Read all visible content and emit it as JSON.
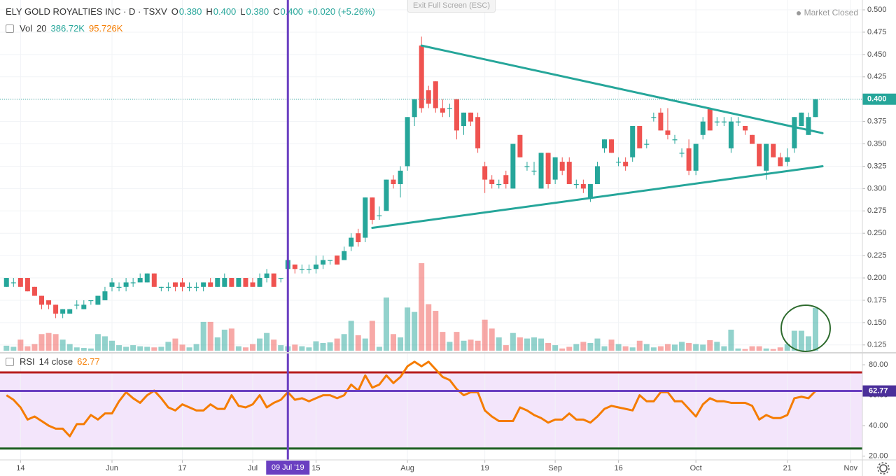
{
  "chart_data": {
    "type": "candlestick",
    "title": "ELY GOLD ROYALTIES INC · D · TSXV",
    "ohlc_names": [
      "O",
      "H",
      "L",
      "C"
    ],
    "ohlc_value_labels": [
      "0.380",
      "0.400",
      "0.380",
      "0.400"
    ],
    "change_label": "+0.020 (+5.26%)",
    "status": "Market Closed",
    "button": "Exit Full Screen (ESC)",
    "up_color": "#26a69a",
    "down_color": "#ef5350",
    "grid": true,
    "x": [
      "2019-05-10",
      "2019-05-13",
      "2019-05-14",
      "2019-05-15",
      "2019-05-16",
      "2019-05-17",
      "2019-05-21",
      "2019-05-22",
      "2019-05-23",
      "2019-05-24",
      "2019-05-27",
      "2019-05-28",
      "2019-05-29",
      "2019-05-30",
      "2019-05-31",
      "2019-06-03",
      "2019-06-04",
      "2019-06-05",
      "2019-06-06",
      "2019-06-07",
      "2019-06-10",
      "2019-06-11",
      "2019-06-12",
      "2019-06-13",
      "2019-06-14",
      "2019-06-17",
      "2019-06-18",
      "2019-06-19",
      "2019-06-20",
      "2019-06-21",
      "2019-06-24",
      "2019-06-25",
      "2019-06-26",
      "2019-06-27",
      "2019-06-28",
      "2019-07-02",
      "2019-07-03",
      "2019-07-04",
      "2019-07-05",
      "2019-07-08",
      "2019-07-09",
      "2019-07-10",
      "2019-07-11",
      "2019-07-12",
      "2019-07-15",
      "2019-07-16",
      "2019-07-17",
      "2019-07-18",
      "2019-07-19",
      "2019-07-22",
      "2019-07-23",
      "2019-07-24",
      "2019-07-25",
      "2019-07-26",
      "2019-07-29",
      "2019-07-30",
      "2019-07-31",
      "2019-08-01",
      "2019-08-02",
      "2019-08-06",
      "2019-08-07",
      "2019-08-08",
      "2019-08-09",
      "2019-08-12",
      "2019-08-13",
      "2019-08-14",
      "2019-08-15",
      "2019-08-16",
      "2019-08-19",
      "2019-08-20",
      "2019-08-21",
      "2019-08-22",
      "2019-08-23",
      "2019-08-26",
      "2019-08-27",
      "2019-08-28",
      "2019-08-29",
      "2019-08-30",
      "2019-09-03",
      "2019-09-04",
      "2019-09-05",
      "2019-09-06",
      "2019-09-09",
      "2019-09-10",
      "2019-09-11",
      "2019-09-12",
      "2019-09-13",
      "2019-09-16",
      "2019-09-17",
      "2019-09-18",
      "2019-09-19",
      "2019-09-20",
      "2019-09-23",
      "2019-09-24",
      "2019-09-25",
      "2019-09-26",
      "2019-09-27",
      "2019-09-30",
      "2019-10-01",
      "2019-10-02",
      "2019-10-03",
      "2019-10-04",
      "2019-10-07",
      "2019-10-08",
      "2019-10-09",
      "2019-10-10",
      "2019-10-11",
      "2019-10-15",
      "2019-10-16",
      "2019-10-17",
      "2019-10-18",
      "2019-10-21",
      "2019-10-22",
      "2019-10-23",
      "2019-10-24",
      "2019-10-25"
    ],
    "ohlc": [
      [
        0.19,
        0.2,
        0.19,
        0.2
      ],
      [
        0.195,
        0.2,
        0.19,
        0.195
      ],
      [
        0.2,
        0.2,
        0.19,
        0.19
      ],
      [
        0.2,
        0.2,
        0.185,
        0.185
      ],
      [
        0.19,
        0.19,
        0.18,
        0.18
      ],
      [
        0.18,
        0.18,
        0.165,
        0.17
      ],
      [
        0.175,
        0.175,
        0.165,
        0.17
      ],
      [
        0.17,
        0.17,
        0.155,
        0.16
      ],
      [
        0.16,
        0.165,
        0.155,
        0.165
      ],
      [
        0.16,
        0.165,
        0.16,
        0.165
      ],
      [
        0.17,
        0.175,
        0.165,
        0.17
      ],
      [
        0.165,
        0.175,
        0.165,
        0.17
      ],
      [
        0.175,
        0.175,
        0.17,
        0.175
      ],
      [
        0.17,
        0.18,
        0.17,
        0.18
      ],
      [
        0.175,
        0.19,
        0.175,
        0.185
      ],
      [
        0.19,
        0.2,
        0.185,
        0.195
      ],
      [
        0.19,
        0.195,
        0.185,
        0.19
      ],
      [
        0.19,
        0.2,
        0.185,
        0.195
      ],
      [
        0.195,
        0.2,
        0.19,
        0.195
      ],
      [
        0.195,
        0.205,
        0.195,
        0.2
      ],
      [
        0.195,
        0.205,
        0.195,
        0.205
      ],
      [
        0.205,
        0.205,
        0.19,
        0.19
      ],
      [
        0.19,
        0.19,
        0.185,
        0.19
      ],
      [
        0.19,
        0.195,
        0.185,
        0.19
      ],
      [
        0.195,
        0.195,
        0.185,
        0.19
      ],
      [
        0.195,
        0.2,
        0.185,
        0.19
      ],
      [
        0.19,
        0.195,
        0.185,
        0.19
      ],
      [
        0.19,
        0.195,
        0.185,
        0.19
      ],
      [
        0.19,
        0.195,
        0.185,
        0.195
      ],
      [
        0.195,
        0.2,
        0.19,
        0.19
      ],
      [
        0.19,
        0.2,
        0.19,
        0.2
      ],
      [
        0.19,
        0.205,
        0.19,
        0.2
      ],
      [
        0.2,
        0.2,
        0.19,
        0.19
      ],
      [
        0.19,
        0.2,
        0.19,
        0.2
      ],
      [
        0.2,
        0.2,
        0.19,
        0.19
      ],
      [
        0.195,
        0.2,
        0.19,
        0.19
      ],
      [
        0.19,
        0.205,
        0.19,
        0.2
      ],
      [
        0.2,
        0.21,
        0.195,
        0.205
      ],
      [
        0.205,
        0.205,
        0.19,
        0.19
      ],
      [
        0.2,
        0.2,
        0.195,
        0.2
      ],
      [
        0.21,
        0.22,
        0.21,
        0.22
      ],
      [
        0.215,
        0.215,
        0.205,
        0.21
      ],
      [
        0.21,
        0.215,
        0.205,
        0.21
      ],
      [
        0.21,
        0.215,
        0.205,
        0.21
      ],
      [
        0.21,
        0.225,
        0.205,
        0.215
      ],
      [
        0.215,
        0.225,
        0.21,
        0.22
      ],
      [
        0.22,
        0.22,
        0.215,
        0.22
      ],
      [
        0.225,
        0.225,
        0.215,
        0.215
      ],
      [
        0.22,
        0.235,
        0.22,
        0.23
      ],
      [
        0.235,
        0.25,
        0.23,
        0.245
      ],
      [
        0.25,
        0.255,
        0.235,
        0.24
      ],
      [
        0.245,
        0.29,
        0.24,
        0.29
      ],
      [
        0.29,
        0.29,
        0.26,
        0.265
      ],
      [
        0.27,
        0.28,
        0.265,
        0.27
      ],
      [
        0.275,
        0.31,
        0.275,
        0.31
      ],
      [
        0.31,
        0.315,
        0.3,
        0.305
      ],
      [
        0.305,
        0.325,
        0.29,
        0.32
      ],
      [
        0.325,
        0.38,
        0.32,
        0.38
      ],
      [
        0.38,
        0.4,
        0.37,
        0.4
      ],
      [
        0.46,
        0.47,
        0.385,
        0.39
      ],
      [
        0.41,
        0.415,
        0.39,
        0.395
      ],
      [
        0.42,
        0.42,
        0.385,
        0.39
      ],
      [
        0.39,
        0.4,
        0.38,
        0.385
      ],
      [
        0.39,
        0.395,
        0.38,
        0.39
      ],
      [
        0.4,
        0.4,
        0.355,
        0.365
      ],
      [
        0.37,
        0.385,
        0.36,
        0.385
      ],
      [
        0.385,
        0.385,
        0.37,
        0.375
      ],
      [
        0.38,
        0.385,
        0.34,
        0.345
      ],
      [
        0.325,
        0.33,
        0.295,
        0.31
      ],
      [
        0.31,
        0.315,
        0.3,
        0.305
      ],
      [
        0.305,
        0.31,
        0.3,
        0.305
      ],
      [
        0.315,
        0.32,
        0.3,
        0.305
      ],
      [
        0.3,
        0.35,
        0.3,
        0.35
      ],
      [
        0.36,
        0.36,
        0.335,
        0.335
      ],
      [
        0.325,
        0.33,
        0.32,
        0.325
      ],
      [
        0.32,
        0.33,
        0.315,
        0.32
      ],
      [
        0.3,
        0.34,
        0.3,
        0.34
      ],
      [
        0.34,
        0.34,
        0.3,
        0.305
      ],
      [
        0.31,
        0.335,
        0.305,
        0.335
      ],
      [
        0.33,
        0.335,
        0.315,
        0.32
      ],
      [
        0.33,
        0.335,
        0.305,
        0.305
      ],
      [
        0.305,
        0.31,
        0.3,
        0.305
      ],
      [
        0.305,
        0.31,
        0.295,
        0.3
      ],
      [
        0.29,
        0.305,
        0.285,
        0.305
      ],
      [
        0.305,
        0.33,
        0.305,
        0.325
      ],
      [
        0.345,
        0.355,
        0.34,
        0.355
      ],
      [
        0.355,
        0.355,
        0.34,
        0.34
      ],
      [
        0.33,
        0.335,
        0.325,
        0.33
      ],
      [
        0.33,
        0.335,
        0.32,
        0.325
      ],
      [
        0.335,
        0.37,
        0.33,
        0.37
      ],
      [
        0.37,
        0.37,
        0.345,
        0.345
      ],
      [
        0.35,
        0.355,
        0.345,
        0.35
      ],
      [
        0.38,
        0.385,
        0.375,
        0.38
      ],
      [
        0.385,
        0.39,
        0.365,
        0.365
      ],
      [
        0.365,
        0.39,
        0.355,
        0.36
      ],
      [
        0.355,
        0.36,
        0.35,
        0.355
      ],
      [
        0.34,
        0.345,
        0.335,
        0.34
      ],
      [
        0.345,
        0.355,
        0.315,
        0.32
      ],
      [
        0.32,
        0.35,
        0.315,
        0.35
      ],
      [
        0.36,
        0.38,
        0.355,
        0.375
      ],
      [
        0.39,
        0.39,
        0.365,
        0.365
      ],
      [
        0.375,
        0.38,
        0.37,
        0.375
      ],
      [
        0.375,
        0.38,
        0.37,
        0.375
      ],
      [
        0.345,
        0.38,
        0.34,
        0.375
      ],
      [
        0.375,
        0.38,
        0.37,
        0.375
      ],
      [
        0.37,
        0.37,
        0.36,
        0.365
      ],
      [
        0.36,
        0.36,
        0.35,
        0.35
      ],
      [
        0.35,
        0.35,
        0.325,
        0.325
      ],
      [
        0.32,
        0.35,
        0.31,
        0.35
      ],
      [
        0.35,
        0.35,
        0.335,
        0.335
      ],
      [
        0.335,
        0.34,
        0.325,
        0.325
      ],
      [
        0.33,
        0.345,
        0.325,
        0.335
      ],
      [
        0.345,
        0.38,
        0.34,
        0.38
      ],
      [
        0.37,
        0.385,
        0.37,
        0.385
      ],
      [
        0.36,
        0.385,
        0.36,
        0.38
      ],
      [
        0.38,
        0.4,
        0.38,
        0.4
      ]
    ],
    "ylim": [
      0.117,
      0.511
    ],
    "yticks": [
      {
        "value": 0.125,
        "label": "0.125"
      },
      {
        "value": 0.15,
        "label": "0.150"
      },
      {
        "value": 0.175,
        "label": "0.175"
      },
      {
        "value": 0.2,
        "label": "0.200"
      },
      {
        "value": 0.225,
        "label": "0.225"
      },
      {
        "value": 0.25,
        "label": "0.250"
      },
      {
        "value": 0.275,
        "label": "0.275"
      },
      {
        "value": 0.3,
        "label": "0.300"
      },
      {
        "value": 0.325,
        "label": "0.325"
      },
      {
        "value": 0.35,
        "label": "0.350"
      },
      {
        "value": 0.375,
        "label": "0.375"
      },
      {
        "value": 0.4,
        "label": "0.400"
      },
      {
        "value": 0.425,
        "label": "0.425"
      },
      {
        "value": 0.45,
        "label": "0.450"
      },
      {
        "value": 0.475,
        "label": "0.475"
      },
      {
        "value": 0.5,
        "label": "0.500"
      }
    ],
    "xticks": [
      {
        "value": "2019-05-14",
        "label": "14"
      },
      {
        "value": "2019-06-03",
        "label": "Jun"
      },
      {
        "value": "2019-06-17",
        "label": "17"
      },
      {
        "value": "2019-07-02",
        "label": "Jul"
      },
      {
        "value": "2019-07-15",
        "label": "15"
      },
      {
        "value": "2019-08-01",
        "label": "Aug"
      },
      {
        "value": "2019-08-19",
        "label": "19"
      },
      {
        "value": "2019-09-03",
        "label": "Sep"
      },
      {
        "value": "2019-09-16",
        "label": "16"
      },
      {
        "value": "2019-10-01",
        "label": "Oct"
      },
      {
        "value": "2019-10-21",
        "label": "21"
      },
      {
        "value": "2019-11-01",
        "label": "Nov"
      }
    ],
    "volume": {
      "name": "Vol",
      "length": 20,
      "value_label": "386.72K",
      "ma_label": "95.726K",
      "values": [
        45,
        35,
        100,
        40,
        60,
        150,
        160,
        150,
        100,
        60,
        30,
        25,
        20,
        150,
        130,
        90,
        50,
        35,
        50,
        40,
        35,
        30,
        35,
        80,
        110,
        55,
        30,
        60,
        260,
        260,
        120,
        190,
        200,
        40,
        30,
        60,
        110,
        160,
        100,
        50,
        40,
        55,
        40,
        30,
        85,
        70,
        75,
        110,
        150,
        270,
        140,
        110,
        270,
        35,
        480,
        150,
        120,
        390,
        350,
        790,
        420,
        360,
        170,
        80,
        170,
        90,
        100,
        90,
        280,
        200,
        120,
        50,
        160,
        120,
        110,
        120,
        110,
        70,
        50,
        20,
        35,
        60,
        80,
        70,
        110,
        40,
        100,
        60,
        40,
        30,
        90,
        60,
        30,
        40,
        60,
        55,
        80,
        70,
        60,
        55,
        95,
        80,
        40,
        190,
        20,
        15,
        40,
        40,
        20,
        15,
        30,
        60,
        180,
        180,
        130,
        386.72
      ]
    },
    "rsi": {
      "name": "RSI",
      "params": "14 close",
      "color": "#f57c00",
      "values": [
        60,
        57,
        52,
        44,
        46,
        43,
        40,
        38,
        38,
        33,
        41,
        41,
        47,
        44,
        48,
        48,
        56,
        62,
        58,
        55,
        60,
        63,
        58,
        52,
        50,
        54,
        52,
        50,
        50,
        54,
        51,
        51,
        60,
        53,
        52,
        54,
        60,
        52,
        55,
        57,
        62,
        57,
        58,
        56,
        58,
        60,
        60,
        58,
        60,
        67,
        63,
        73,
        65,
        67,
        73,
        68,
        72,
        79,
        82,
        79,
        82,
        77,
        72,
        70,
        64,
        60,
        62,
        62,
        50,
        46,
        43,
        43,
        43,
        52,
        50,
        47,
        45,
        42,
        44,
        44,
        48,
        44,
        44,
        42,
        46,
        51,
        53,
        52,
        51,
        50,
        60,
        56,
        56,
        62,
        62,
        56,
        56,
        51,
        46,
        54,
        58,
        56,
        56,
        55,
        55,
        55,
        53,
        44,
        47,
        45,
        45,
        47,
        58,
        59,
        58,
        62.77
      ],
      "ylim": [
        17.5,
        87.4
      ],
      "yticks": [
        {
          "value": 20,
          "label": "20.00"
        },
        {
          "value": 40,
          "label": "40.00"
        },
        {
          "value": 60,
          "label": "60.00"
        },
        {
          "value": 80,
          "label": "80.00"
        }
      ],
      "band": [
        25,
        75
      ],
      "band_colors": [
        "#1b5e20",
        "#b71c1c"
      ],
      "band_fill": "#f3e5fb"
    },
    "trendlines": [
      {
        "x": [
          "2019-08-06",
          "2019-10-28"
        ],
        "y": [
          0.46,
          0.362
        ],
        "color": "#26a69a"
      },
      {
        "x": [
          "2019-07-25",
          "2019-10-28"
        ],
        "y": [
          0.256,
          0.325
        ],
        "color": "#26a69a"
      }
    ],
    "crosshair": {
      "x": "2019-07-09",
      "label": "09 Jul '19",
      "color": "#6a3fc1"
    }
  }
}
